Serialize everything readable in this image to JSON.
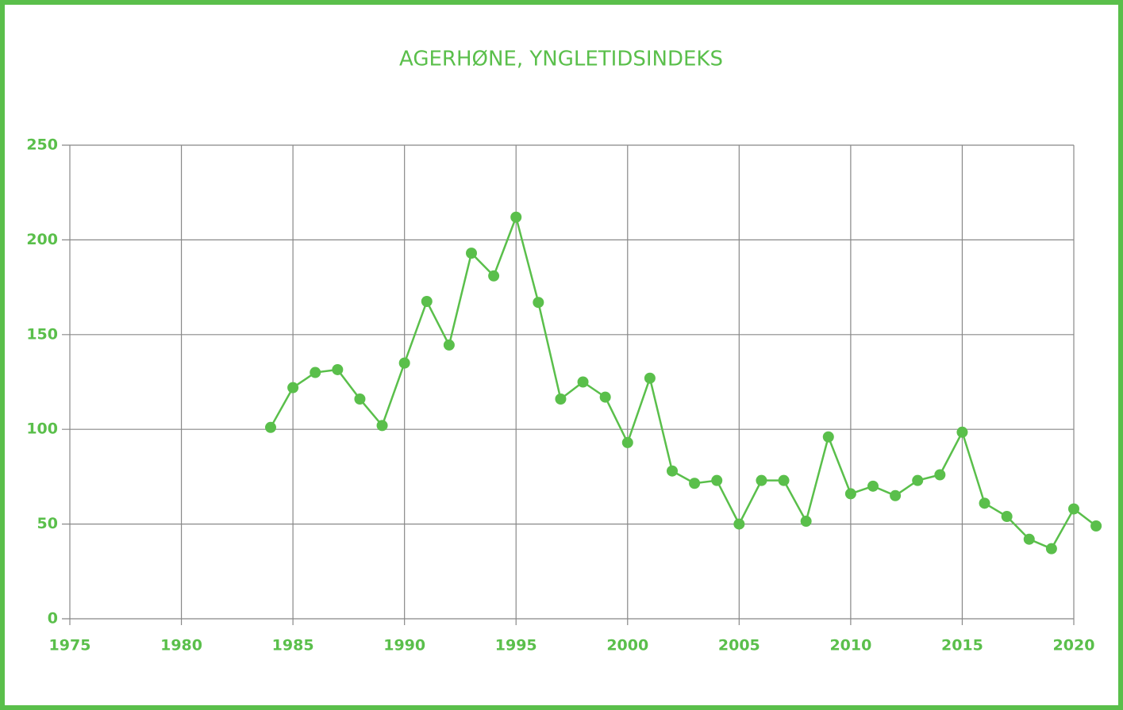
{
  "chart_data": {
    "type": "line",
    "title": "AGERHØNE, YNGLETIDSINDEKS",
    "x": [
      1984,
      1985,
      1986,
      1987,
      1988,
      1989,
      1990,
      1991,
      1992,
      1993,
      1994,
      1995,
      1996,
      1997,
      1998,
      1999,
      2000,
      2001,
      2002,
      2003,
      2004,
      2005,
      2006,
      2007,
      2008,
      2009,
      2010,
      2011,
      2012,
      2013,
      2014,
      2015,
      2016,
      2017,
      2018,
      2019,
      2020,
      2021
    ],
    "series": [
      {
        "name": "Yngletidsindeks",
        "color": "#5abf4b",
        "values": [
          101,
          122,
          130,
          131.5,
          116,
          102,
          135,
          167.5,
          144.5,
          193,
          181,
          212,
          167,
          116,
          125,
          117,
          93,
          127,
          78,
          71.5,
          73,
          50,
          73,
          73,
          51.5,
          96,
          66,
          70,
          65,
          73,
          76,
          98.5,
          61,
          54,
          42,
          37,
          58,
          49
        ]
      }
    ],
    "xlim": [
      1975,
      2020
    ],
    "xticks": [
      1975,
      1980,
      1985,
      1990,
      1995,
      2000,
      2005,
      2010,
      2015,
      2020
    ],
    "ylim": [
      0,
      250
    ],
    "yticks": [
      0,
      50,
      100,
      150,
      200,
      250
    ],
    "grid": true
  }
}
